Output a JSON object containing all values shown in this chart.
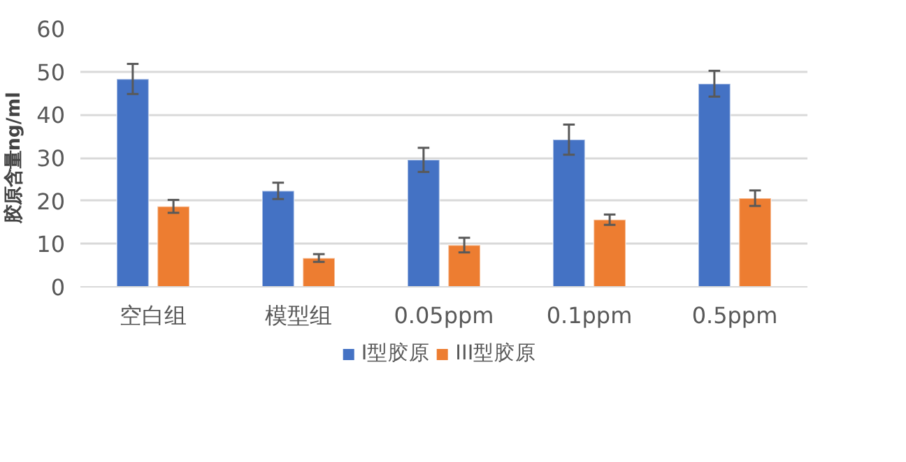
{
  "chart_data": {
    "type": "bar",
    "ylabel": "胶原含量ng/ml",
    "categories": [
      "空白组",
      "模型组",
      "0.05ppm",
      "0.1ppm",
      "0.5ppm"
    ],
    "series": [
      {
        "name": "I型胶原",
        "color": "#4472c4",
        "values": [
          48.3,
          22.3,
          29.5,
          34.2,
          47.2
        ],
        "errors": [
          3.5,
          1.9,
          2.8,
          3.5,
          3
        ]
      },
      {
        "name": "III型胶原",
        "color": "#ed7d31",
        "values": [
          18.7,
          6.7,
          9.7,
          15.6,
          20.6
        ],
        "errors": [
          1.5,
          0.9,
          1.7,
          1.2,
          1.8
        ]
      }
    ],
    "ylim": [
      0,
      60
    ],
    "yticks": [
      0,
      10,
      20,
      30,
      40,
      50,
      60
    ],
    "grid": "y",
    "legend": "bottom"
  }
}
